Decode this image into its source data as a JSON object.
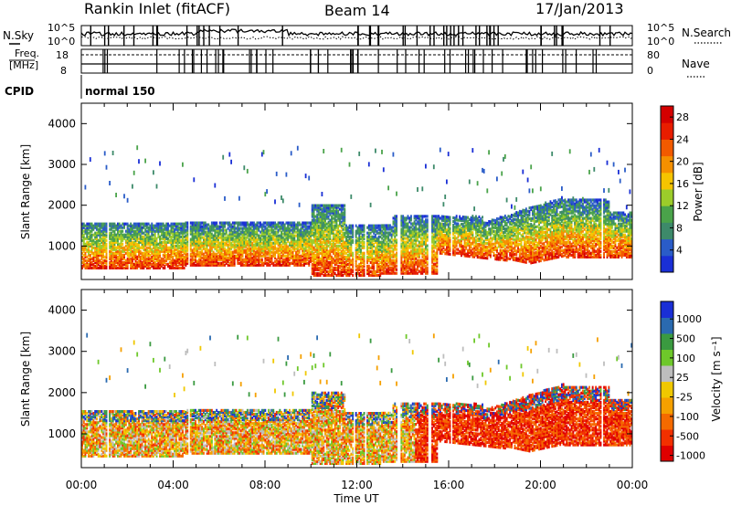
{
  "header": {
    "station": "Rankin Inlet (fitACF)",
    "beam": "Beam 14",
    "date": "17/Jan/2013"
  },
  "top_panels": {
    "nsky_label": "N.Sky",
    "nsky_ticks": [
      "10^5",
      "10^0"
    ],
    "nsearch_label": "N.Search",
    "freq_label_1": "Freq.",
    "freq_label_2": "[MHz]",
    "freq_ticks": [
      "18",
      "8"
    ],
    "nave_label": "Nave",
    "nave_ticks": [
      "80",
      "0"
    ],
    "cpid_label": "CPID",
    "cpid_value": "normal 150"
  },
  "colors": {
    "power": [
      "#1a2fd6",
      "#2a5cc8",
      "#3d8a6a",
      "#4aa34a",
      "#9ccc2a",
      "#f5c400",
      "#f59000",
      "#f25a00",
      "#e81d00",
      "#d40000"
    ],
    "velocity": [
      "#e00000",
      "#f23000",
      "#f56a00",
      "#f5a000",
      "#f0c800",
      "#bdbdbd",
      "#6ec82a",
      "#3a9a40",
      "#2a6ab0",
      "#1a2fd6"
    ]
  },
  "chart_data": [
    {
      "type": "heatmap",
      "panel": "power",
      "ylabel": "Slant Range [km]",
      "ylim": [
        180,
        4500
      ],
      "xlim_hours": [
        0,
        24
      ],
      "x_ticks": [
        "00:00",
        "04:00",
        "08:00",
        "12:00",
        "16:00",
        "20:00",
        "00:00"
      ],
      "y_ticks": [
        1000,
        2000,
        3000,
        4000
      ],
      "colorbar_label": "Power [dB]",
      "colorbar_ticks": [
        "4",
        "8",
        "12",
        "16",
        "20",
        "24",
        "28"
      ],
      "colorbar_range": [
        0,
        30
      ]
    },
    {
      "type": "heatmap",
      "panel": "velocity",
      "ylabel": "Slant Range [km]",
      "ylim": [
        180,
        4500
      ],
      "xlim_hours": [
        0,
        24
      ],
      "x_ticks": [
        "00:00",
        "04:00",
        "08:00",
        "12:00",
        "16:00",
        "20:00",
        "00:00"
      ],
      "y_ticks": [
        1000,
        2000,
        3000,
        4000
      ],
      "xlabel": "Time UT",
      "colorbar_label": "Velocity [m s⁻¹]",
      "colorbar_ticks": [
        "1000",
        "500",
        "100",
        "25",
        "-25",
        "-100",
        "-500",
        "-1000"
      ]
    }
  ]
}
